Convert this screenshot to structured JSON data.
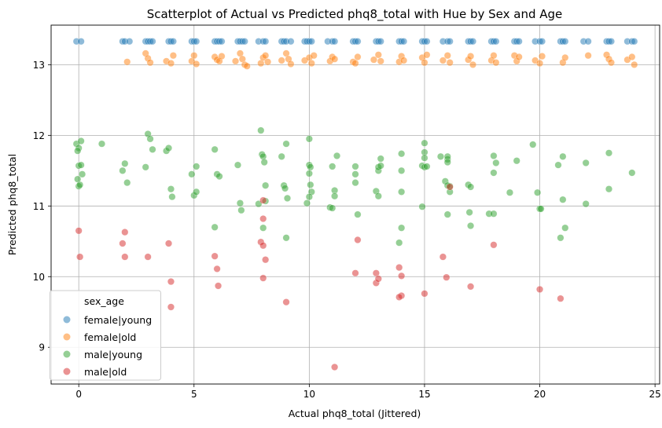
{
  "chart_data": {
    "type": "scatter",
    "title": "Scatterplot of Actual vs Predicted phq8_total with Hue by Sex and Age",
    "xlabel": "Actual phq8_total (Jittered)",
    "ylabel": "Predicted phq8_total",
    "xlim": [
      -1.2,
      25.2
    ],
    "ylim": [
      8.48,
      13.56
    ],
    "xticks": [
      0,
      5,
      10,
      15,
      20,
      25
    ],
    "yticks": [
      9,
      10,
      11,
      12,
      13
    ],
    "grid": true,
    "legend": {
      "title": "sex_age",
      "placement": "lower-left"
    },
    "series": [
      {
        "name": "female|young",
        "color": "#1f77b4",
        "points": [
          [
            -0.1,
            13.33
          ],
          [
            0.1,
            13.33
          ],
          [
            1.9,
            13.33
          ],
          [
            2.0,
            13.33
          ],
          [
            2.2,
            13.33
          ],
          [
            2.9,
            13.33
          ],
          [
            3.0,
            13.33
          ],
          [
            3.1,
            13.33
          ],
          [
            3.2,
            13.33
          ],
          [
            3.9,
            13.33
          ],
          [
            4.0,
            13.33
          ],
          [
            4.1,
            13.33
          ],
          [
            4.9,
            13.33
          ],
          [
            5.0,
            13.33
          ],
          [
            5.1,
            13.33
          ],
          [
            5.9,
            13.33
          ],
          [
            6.0,
            13.33
          ],
          [
            6.1,
            13.33
          ],
          [
            6.2,
            13.33
          ],
          [
            6.9,
            13.33
          ],
          [
            7.0,
            13.33
          ],
          [
            7.1,
            13.33
          ],
          [
            7.2,
            13.33
          ],
          [
            7.8,
            13.33
          ],
          [
            8.0,
            13.33
          ],
          [
            8.1,
            13.33
          ],
          [
            8.8,
            13.33
          ],
          [
            8.9,
            13.33
          ],
          [
            9.0,
            13.33
          ],
          [
            9.2,
            13.33
          ],
          [
            9.8,
            13.33
          ],
          [
            9.9,
            13.33
          ],
          [
            10.0,
            13.33
          ],
          [
            10.1,
            13.33
          ],
          [
            10.8,
            13.33
          ],
          [
            11.0,
            13.33
          ],
          [
            11.1,
            13.33
          ],
          [
            11.9,
            13.33
          ],
          [
            12.0,
            13.33
          ],
          [
            12.1,
            13.33
          ],
          [
            12.9,
            13.33
          ],
          [
            13.0,
            13.33
          ],
          [
            13.1,
            13.33
          ],
          [
            13.9,
            13.33
          ],
          [
            14.0,
            13.33
          ],
          [
            14.1,
            13.33
          ],
          [
            14.9,
            13.33
          ],
          [
            15.0,
            13.33
          ],
          [
            15.1,
            13.33
          ],
          [
            15.8,
            13.33
          ],
          [
            16.0,
            13.33
          ],
          [
            16.1,
            13.33
          ],
          [
            16.9,
            13.33
          ],
          [
            17.0,
            13.33
          ],
          [
            17.1,
            13.33
          ],
          [
            17.9,
            13.33
          ],
          [
            18.0,
            13.33
          ],
          [
            18.1,
            13.33
          ],
          [
            18.9,
            13.33
          ],
          [
            19.0,
            13.33
          ],
          [
            19.1,
            13.33
          ],
          [
            19.8,
            13.33
          ],
          [
            20.0,
            13.33
          ],
          [
            20.1,
            13.33
          ],
          [
            20.9,
            13.33
          ],
          [
            21.0,
            13.33
          ],
          [
            21.1,
            13.33
          ],
          [
            21.9,
            13.33
          ],
          [
            22.1,
            13.33
          ],
          [
            22.9,
            13.33
          ],
          [
            23.0,
            13.33
          ],
          [
            23.1,
            13.33
          ],
          [
            23.8,
            13.33
          ],
          [
            24.0,
            13.33
          ],
          [
            24.1,
            13.33
          ]
        ]
      },
      {
        "name": "female|old",
        "color": "#ff7f0e",
        "points": [
          [
            2.1,
            13.04
          ],
          [
            2.9,
            13.16
          ],
          [
            3.0,
            13.09
          ],
          [
            3.1,
            13.03
          ],
          [
            3.8,
            13.05
          ],
          [
            4.0,
            13.02
          ],
          [
            4.1,
            13.13
          ],
          [
            4.9,
            13.05
          ],
          [
            5.0,
            13.13
          ],
          [
            5.1,
            13.01
          ],
          [
            5.9,
            13.11
          ],
          [
            6.0,
            13.07
          ],
          [
            6.1,
            13.05
          ],
          [
            6.2,
            13.12
          ],
          [
            6.8,
            13.05
          ],
          [
            7.0,
            13.16
          ],
          [
            7.1,
            13.08
          ],
          [
            7.2,
            13.0
          ],
          [
            7.3,
            12.98
          ],
          [
            7.9,
            13.02
          ],
          [
            8.0,
            13.1
          ],
          [
            8.1,
            13.13
          ],
          [
            8.2,
            13.04
          ],
          [
            8.8,
            13.06
          ],
          [
            9.0,
            13.16
          ],
          [
            9.1,
            13.08
          ],
          [
            9.2,
            13.01
          ],
          [
            9.8,
            13.06
          ],
          [
            10.0,
            13.1
          ],
          [
            10.1,
            13.02
          ],
          [
            10.2,
            13.13
          ],
          [
            10.9,
            13.05
          ],
          [
            11.0,
            13.11
          ],
          [
            11.1,
            13.08
          ],
          [
            11.9,
            13.04
          ],
          [
            12.0,
            13.02
          ],
          [
            12.1,
            13.11
          ],
          [
            12.8,
            13.07
          ],
          [
            13.0,
            13.14
          ],
          [
            13.1,
            13.05
          ],
          [
            13.9,
            13.04
          ],
          [
            14.0,
            13.12
          ],
          [
            14.1,
            13.06
          ],
          [
            14.9,
            13.1
          ],
          [
            15.0,
            13.03
          ],
          [
            15.1,
            13.14
          ],
          [
            15.8,
            13.06
          ],
          [
            16.0,
            13.13
          ],
          [
            16.1,
            13.03
          ],
          [
            16.9,
            13.07
          ],
          [
            17.0,
            13.12
          ],
          [
            17.1,
            13.0
          ],
          [
            17.9,
            13.06
          ],
          [
            18.0,
            13.13
          ],
          [
            18.1,
            13.03
          ],
          [
            18.9,
            13.13
          ],
          [
            19.0,
            13.05
          ],
          [
            19.1,
            13.11
          ],
          [
            19.8,
            13.06
          ],
          [
            20.0,
            13.02
          ],
          [
            20.1,
            13.12
          ],
          [
            21.0,
            13.03
          ],
          [
            21.1,
            13.1
          ],
          [
            22.1,
            13.13
          ],
          [
            22.9,
            13.14
          ],
          [
            23.0,
            13.08
          ],
          [
            23.1,
            13.03
          ],
          [
            23.8,
            13.07
          ],
          [
            24.0,
            13.11
          ],
          [
            24.1,
            13.0
          ]
        ]
      },
      {
        "name": "male|young",
        "color": "#2ca02c",
        "points": [
          [
            -0.1,
            11.88
          ],
          [
            0.0,
            11.82
          ],
          [
            0.1,
            11.92
          ],
          [
            -0.05,
            11.78
          ],
          [
            0.0,
            11.57
          ],
          [
            0.1,
            11.58
          ],
          [
            0.15,
            11.45
          ],
          [
            -0.05,
            11.38
          ],
          [
            0.0,
            11.28
          ],
          [
            0.05,
            11.3
          ],
          [
            1.0,
            11.88
          ],
          [
            1.9,
            11.5
          ],
          [
            2.0,
            11.6
          ],
          [
            2.1,
            11.33
          ],
          [
            2.9,
            11.55
          ],
          [
            3.0,
            12.02
          ],
          [
            3.1,
            11.95
          ],
          [
            3.2,
            11.8
          ],
          [
            3.8,
            11.78
          ],
          [
            3.9,
            11.82
          ],
          [
            4.0,
            11.24
          ],
          [
            4.05,
            11.13
          ],
          [
            4.9,
            11.45
          ],
          [
            5.0,
            11.15
          ],
          [
            5.1,
            11.2
          ],
          [
            5.1,
            11.56
          ],
          [
            5.9,
            11.8
          ],
          [
            5.9,
            10.7
          ],
          [
            6.0,
            11.45
          ],
          [
            6.1,
            11.42
          ],
          [
            6.9,
            11.58
          ],
          [
            7.0,
            11.04
          ],
          [
            7.05,
            10.94
          ],
          [
            7.8,
            11.03
          ],
          [
            7.9,
            12.07
          ],
          [
            7.95,
            11.73
          ],
          [
            8.0,
            11.7
          ],
          [
            8.05,
            11.62
          ],
          [
            8.1,
            11.29
          ],
          [
            8.1,
            11.07
          ],
          [
            8.0,
            10.69
          ],
          [
            8.8,
            11.7
          ],
          [
            8.9,
            11.29
          ],
          [
            8.95,
            11.25
          ],
          [
            9.0,
            11.88
          ],
          [
            9.05,
            11.11
          ],
          [
            9.0,
            10.55
          ],
          [
            9.9,
            11.04
          ],
          [
            10.0,
            11.95
          ],
          [
            10.0,
            11.58
          ],
          [
            10.05,
            11.55
          ],
          [
            10.0,
            11.46
          ],
          [
            10.05,
            11.3
          ],
          [
            10.1,
            11.2
          ],
          [
            10.0,
            11.13
          ],
          [
            11.0,
            11.56
          ],
          [
            11.1,
            11.22
          ],
          [
            11.2,
            11.71
          ],
          [
            11.1,
            11.14
          ],
          [
            10.9,
            10.98
          ],
          [
            11.0,
            10.97
          ],
          [
            12.0,
            11.56
          ],
          [
            12.0,
            11.45
          ],
          [
            12.0,
            11.33
          ],
          [
            12.1,
            10.88
          ],
          [
            13.0,
            11.5
          ],
          [
            13.1,
            11.67
          ],
          [
            13.0,
            11.55
          ],
          [
            13.1,
            11.57
          ],
          [
            12.9,
            11.21
          ],
          [
            13.0,
            11.14
          ],
          [
            14.0,
            11.2
          ],
          [
            14.0,
            11.5
          ],
          [
            14.0,
            11.74
          ],
          [
            14.0,
            10.69
          ],
          [
            13.9,
            10.48
          ],
          [
            14.9,
            11.57
          ],
          [
            15.0,
            11.89
          ],
          [
            15.0,
            11.76
          ],
          [
            15.0,
            11.68
          ],
          [
            15.0,
            11.55
          ],
          [
            15.1,
            11.56
          ],
          [
            14.9,
            10.99
          ],
          [
            15.7,
            11.7
          ],
          [
            15.9,
            11.35
          ],
          [
            16.0,
            11.66
          ],
          [
            16.0,
            11.7
          ],
          [
            16.0,
            11.62
          ],
          [
            16.1,
            11.28
          ],
          [
            16.1,
            11.2
          ],
          [
            16.0,
            10.88
          ],
          [
            16.0,
            11.29
          ],
          [
            16.9,
            11.3
          ],
          [
            17.0,
            11.27
          ],
          [
            16.95,
            10.91
          ],
          [
            17.0,
            10.72
          ],
          [
            17.8,
            10.89
          ],
          [
            18.0,
            11.71
          ],
          [
            18.0,
            11.47
          ],
          [
            18.1,
            11.61
          ],
          [
            18.0,
            10.89
          ],
          [
            18.7,
            11.19
          ],
          [
            19.0,
            11.64
          ],
          [
            19.7,
            11.87
          ],
          [
            19.9,
            11.19
          ],
          [
            20.0,
            10.96
          ],
          [
            20.05,
            10.96
          ],
          [
            20.8,
            11.58
          ],
          [
            21.0,
            11.7
          ],
          [
            21.0,
            11.09
          ],
          [
            21.1,
            10.69
          ],
          [
            20.9,
            10.55
          ],
          [
            22.0,
            11.61
          ],
          [
            22.0,
            11.03
          ],
          [
            23.0,
            11.75
          ],
          [
            23.0,
            11.24
          ],
          [
            24.0,
            11.47
          ]
        ]
      },
      {
        "name": "male|old",
        "color": "#d62728",
        "points": [
          [
            0.0,
            10.65
          ],
          [
            0.05,
            10.28
          ],
          [
            1.9,
            10.47
          ],
          [
            2.0,
            10.63
          ],
          [
            2.0,
            10.28
          ],
          [
            3.0,
            10.28
          ],
          [
            3.9,
            10.47
          ],
          [
            4.0,
            9.93
          ],
          [
            4.0,
            9.57
          ],
          [
            5.9,
            10.29
          ],
          [
            6.0,
            10.11
          ],
          [
            6.05,
            9.87
          ],
          [
            7.9,
            10.49
          ],
          [
            8.0,
            10.82
          ],
          [
            8.0,
            10.44
          ],
          [
            8.1,
            10.24
          ],
          [
            8.0,
            9.98
          ],
          [
            8.0,
            11.08
          ],
          [
            9.0,
            9.64
          ],
          [
            11.1,
            8.72
          ],
          [
            12.0,
            10.05
          ],
          [
            12.1,
            10.52
          ],
          [
            12.9,
            10.05
          ],
          [
            12.9,
            9.91
          ],
          [
            13.0,
            9.97
          ],
          [
            13.9,
            10.13
          ],
          [
            14.0,
            10.01
          ],
          [
            14.0,
            9.73
          ],
          [
            13.9,
            9.71
          ],
          [
            15.0,
            9.76
          ],
          [
            15.8,
            10.28
          ],
          [
            15.95,
            9.99
          ],
          [
            16.1,
            11.27
          ],
          [
            17.0,
            9.86
          ],
          [
            18.0,
            10.45
          ],
          [
            20.0,
            9.82
          ],
          [
            20.9,
            9.69
          ]
        ]
      }
    ]
  }
}
